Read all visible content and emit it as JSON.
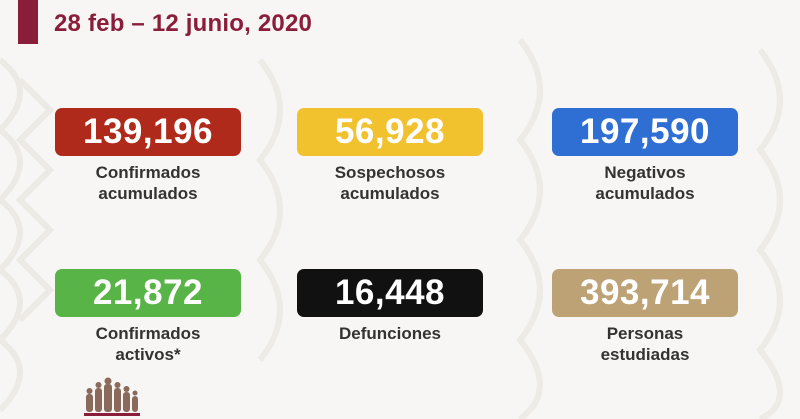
{
  "header": {
    "date_range": "28 feb – 12 junio, 2020"
  },
  "stats": [
    {
      "value": "139,196",
      "line1": "Confirmados",
      "line2": "acumulados",
      "color": "#b02a1c"
    },
    {
      "value": "56,928",
      "line1": "Sospechosos",
      "line2": "acumulados",
      "color": "#f2c12e"
    },
    {
      "value": "197,590",
      "line1": "Negativos",
      "line2": "acumulados",
      "color": "#2f6fd4"
    },
    {
      "value": "21,872",
      "line1": "Confirmados",
      "line2": "activos*",
      "color": "#58b446"
    },
    {
      "value": "16,448",
      "line1": "Defunciones",
      "line2": "",
      "color": "#111111"
    },
    {
      "value": "393,714",
      "line1": "Personas",
      "line2": "estudiadas",
      "color": "#bca275"
    }
  ],
  "colors": {
    "brand": "#8a1e3a",
    "background": "#f7f6f4",
    "label_text": "#333333"
  },
  "logo": {
    "icon": "heroes-logo-icon"
  }
}
